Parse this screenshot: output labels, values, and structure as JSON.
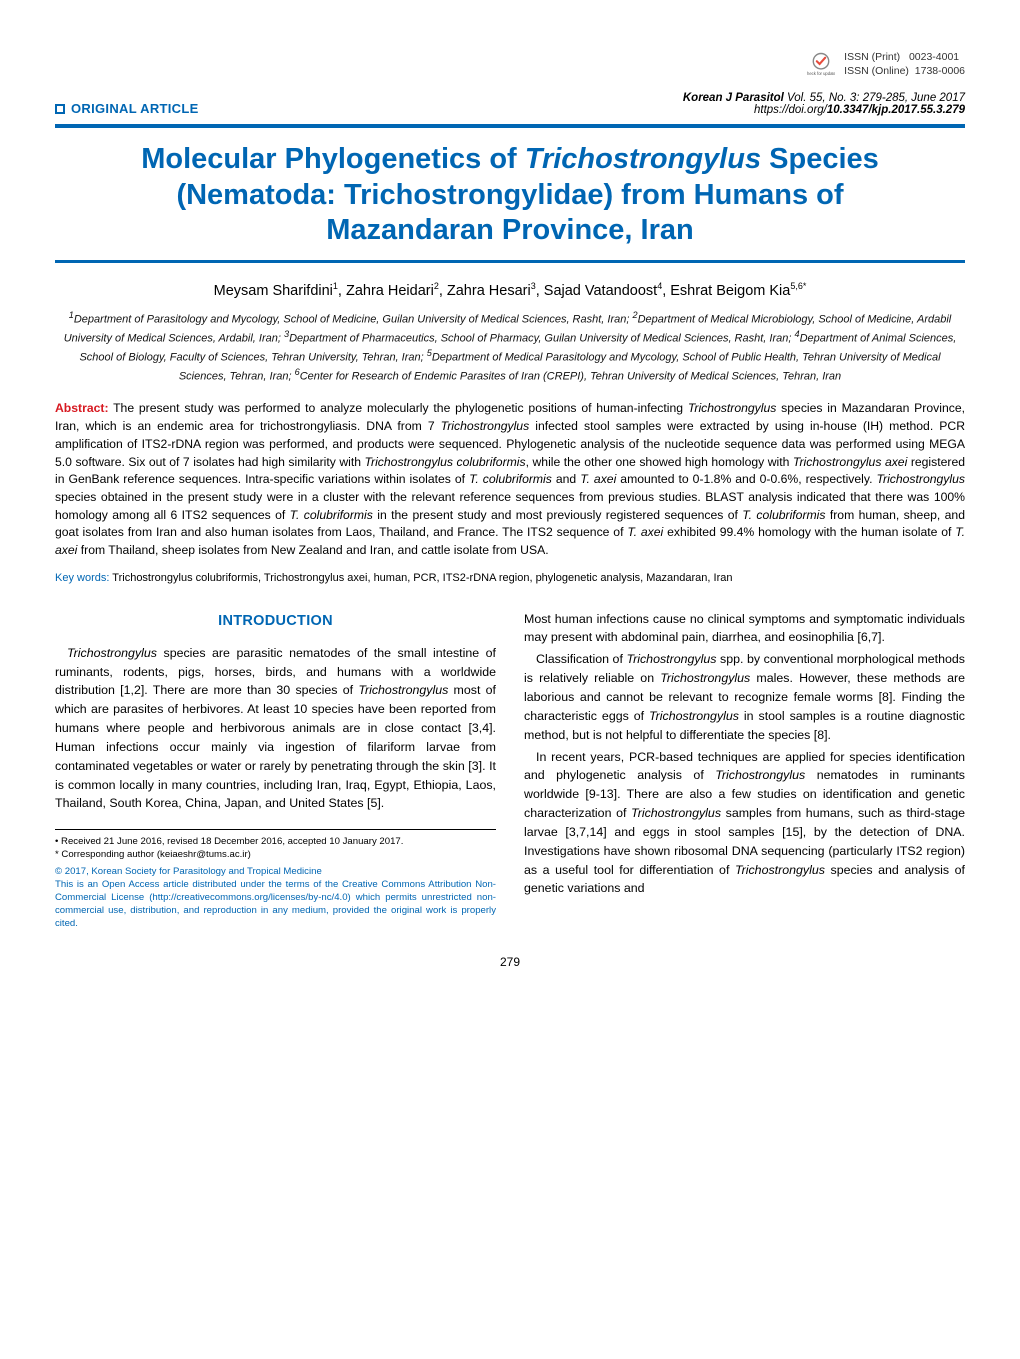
{
  "header": {
    "article_type": "ORIGINAL ARTICLE",
    "issn_print_label": "ISSN (Print)",
    "issn_print": "0023-4001",
    "issn_online_label": "ISSN (Online)",
    "issn_online": "1738-0006",
    "check_updates_label": "Check for updates",
    "journal_name": "Korean J Parasitol",
    "vol_issue": "Vol. 55, No. 3: 279-285, June 2017",
    "doi_prefix": "https://doi.org/",
    "doi": "10.3347/kjp.2017.55.3.279"
  },
  "title_lines": [
    "Molecular Phylogenetics of Trichostrongylus Species",
    "(Nematoda: Trichostrongylidae) from Humans of",
    "Mazandaran Province, Iran"
  ],
  "title_italic_word": "Trichostrongylus",
  "authors_html": "Meysam Sharifdini<sup>1</sup>, Zahra Heidari<sup>2</sup>, Zahra Hesari<sup>3</sup>, Sajad Vatandoost<sup>4</sup>, Eshrat Beigom Kia<sup>5,6*</sup>",
  "affiliations": "1Department of Parasitology and Mycology, School of Medicine, Guilan University of Medical Sciences, Rasht, Iran; 2Department of Medical Microbiology, School of Medicine, Ardabil University of Medical Sciences, Ardabil, Iran; 3Department of Pharmaceutics, School of Pharmacy, Guilan University of Medical Sciences, Rasht, Iran; 4Department of Animal Sciences, School of Biology, Faculty of Sciences, Tehran University, Tehran, Iran; 5Department of Medical Parasitology and Mycology, School of Public Health, Tehran University of Medical Sciences, Tehran, Iran; 6Center for Research of Endemic Parasites of Iran (CREPI), Tehran University of Medical Sciences, Tehran, Iran",
  "abstract": {
    "label": "Abstract:",
    "text": "The present study was performed to analyze molecularly the phylogenetic positions of human-infecting Trichostrongylus species in Mazandaran Province, Iran, which is an endemic area for trichostrongyliasis. DNA from 7 Trichostrongylus infected stool samples were extracted by using in-house (IH) method. PCR amplification of ITS2-rDNA region was performed, and products were sequenced. Phylogenetic analysis of the nucleotide sequence data was performed using MEGA 5.0 software. Six out of 7 isolates had high similarity with Trichostrongylus colubriformis, while the other one showed high homology with Trichostrongylus axei registered in GenBank reference sequences. Intra-specific variations within isolates of T. colubriformis and T. axei amounted to 0-1.8% and 0-0.6%, respectively. Trichostrongylus species obtained in the present study were in a cluster with the relevant reference sequences from previous studies. BLAST analysis indicated that there was 100% homology among all 6 ITS2 sequences of T. colubriformis in the present study and most previously registered sequences of T. colubriformis from human, sheep, and goat isolates from Iran and also human isolates from Laos, Thailand, and France. The ITS2 sequence of T. axei exhibited 99.4% homology with the human isolate of T. axei from Thailand, sheep isolates from New Zealand and Iran, and cattle isolate from USA."
  },
  "keywords": {
    "label": "Key words:",
    "text": "Trichostrongylus colubriformis, Trichostrongylus axei, human, PCR, ITS2-rDNA region, phylogenetic analysis, Mazandaran, Iran"
  },
  "section_intro_title": "INTRODUCTION",
  "intro": {
    "p1": "Trichostrongylus species are parasitic nematodes of the small intestine of ruminants, rodents, pigs, horses, birds, and humans with a worldwide distribution [1,2]. There are more than 30 species of Trichostrongylus most of which are parasites of herbivores. At least 10 species have been reported from humans where people and herbivorous animals are in close contact [3,4]. Human infections occur mainly via ingestion of filariform larvae from contaminated vegetables or water or rarely by penetrating through the skin [3]. It is common locally in many countries, including Iran, Iraq, Egypt, Ethiopia, Laos, Thailand, South Korea, China, Japan, and United States [5].",
    "p2": "Most human infections cause no clinical symptoms and symptomatic individuals may present with abdominal pain, diarrhea, and eosinophilia [6,7].",
    "p3": "Classification of Trichostrongylus spp. by conventional morphological methods is relatively reliable on Trichostrongylus males. However, these methods are laborious and cannot be relevant to recognize female worms [8]. Finding the characteristic eggs of Trichostrongylus in stool samples is a routine diagnostic method, but is not helpful to differentiate the species [8].",
    "p4": "In recent years, PCR-based techniques are applied for species identification and phylogenetic analysis of Trichostrongylus nematodes in ruminants worldwide [9-13]. There are also a few studies on identification and genetic characterization of Trichostrongylus samples from humans, such as third-stage larvae [3,7,14] and eggs in stool samples [15], by the detection of DNA. Investigations have shown ribosomal DNA sequencing (particularly ITS2 region) as a useful tool for differentiation of Trichostrongylus species and analysis of genetic variations and"
  },
  "footnotes": {
    "received": "• Received 21 June 2016, revised 18 December 2016, accepted 10 January 2017.",
    "corresponding": "* Corresponding author (keiaeshr@tums.ac.ir)",
    "copyright": "© 2017, Korean Society for Parasitology and Tropical Medicine",
    "license": "This is an Open Access article distributed under the terms of the Creative Commons Attribution Non-Commercial License (http://creativecommons.org/licenses/by-nc/4.0) which permits unrestricted non-commercial use, distribution, and reproduction in any medium, provided the original work is properly cited."
  },
  "page_number": "279",
  "colors": {
    "brand_blue": "#0066b3",
    "key_red": "#d71921",
    "text": "#000000"
  },
  "typography": {
    "title_pt": 29,
    "body_pt": 12.4,
    "abstract_pt": 12.2,
    "affil_pt": 11,
    "footnote_pt": 9.6
  }
}
